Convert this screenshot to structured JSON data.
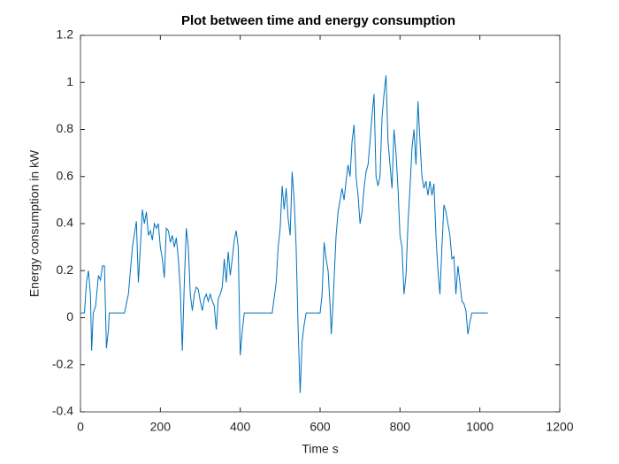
{
  "chart_data": {
    "type": "line",
    "title": "Plot between time and energy consumption",
    "xlabel": "Time s",
    "ylabel": "Energy consumption in kW",
    "color": "#0072bd",
    "xlim": [
      0,
      1200
    ],
    "xticks": [
      0,
      200,
      400,
      600,
      800,
      1000,
      1200
    ],
    "ylim": [
      -0.4,
      1.2
    ],
    "yticks": [
      -0.4,
      -0.2,
      0,
      0.2,
      0.4,
      0.6,
      0.8,
      1,
      1.2
    ],
    "x": [
      0,
      10,
      15,
      20,
      25,
      28,
      32,
      38,
      45,
      50,
      55,
      60,
      65,
      70,
      72,
      80,
      100,
      110,
      120,
      130,
      140,
      145,
      150,
      155,
      160,
      165,
      170,
      175,
      180,
      185,
      190,
      195,
      200,
      205,
      210,
      215,
      220,
      225,
      230,
      235,
      240,
      245,
      250,
      255,
      260,
      265,
      270,
      275,
      280,
      285,
      290,
      295,
      300,
      305,
      310,
      315,
      320,
      325,
      330,
      335,
      340,
      345,
      350,
      355,
      360,
      365,
      370,
      375,
      380,
      385,
      390,
      395,
      400,
      405,
      410,
      420,
      440,
      460,
      480,
      490,
      495,
      500,
      505,
      510,
      515,
      520,
      525,
      530,
      535,
      540,
      545,
      550,
      555,
      560,
      565,
      570,
      580,
      590,
      600,
      605,
      610,
      615,
      620,
      625,
      628,
      632,
      640,
      645,
      650,
      655,
      660,
      665,
      670,
      675,
      680,
      685,
      690,
      695,
      700,
      705,
      710,
      715,
      720,
      725,
      730,
      735,
      740,
      745,
      750,
      755,
      760,
      765,
      770,
      775,
      780,
      785,
      790,
      795,
      800,
      805,
      810,
      815,
      820,
      825,
      830,
      835,
      840,
      845,
      850,
      855,
      860,
      865,
      870,
      875,
      880,
      885,
      890,
      895,
      900,
      905,
      910,
      915,
      920,
      925,
      930,
      935,
      940,
      945,
      950,
      955,
      960,
      965,
      970,
      975,
      980,
      1000,
      1020
    ],
    "values": [
      0.02,
      0.02,
      0.15,
      0.2,
      0.1,
      -0.14,
      0.02,
      0.05,
      0.18,
      0.16,
      0.22,
      0.22,
      -0.13,
      -0.05,
      0.02,
      0.02,
      0.02,
      0.02,
      0.1,
      0.3,
      0.41,
      0.15,
      0.3,
      0.46,
      0.4,
      0.45,
      0.35,
      0.37,
      0.33,
      0.4,
      0.38,
      0.4,
      0.3,
      0.25,
      0.17,
      0.38,
      0.37,
      0.32,
      0.35,
      0.3,
      0.34,
      0.25,
      0.12,
      -0.14,
      0.15,
      0.38,
      0.3,
      0.1,
      0.03,
      0.1,
      0.13,
      0.12,
      0.07,
      0.03,
      0.08,
      0.1,
      0.07,
      0.1,
      0.07,
      0.05,
      -0.05,
      0.08,
      0.1,
      0.13,
      0.25,
      0.15,
      0.28,
      0.18,
      0.25,
      0.33,
      0.37,
      0.3,
      -0.16,
      -0.06,
      0.02,
      0.02,
      0.02,
      0.02,
      0.02,
      0.15,
      0.3,
      0.38,
      0.56,
      0.46,
      0.55,
      0.42,
      0.35,
      0.62,
      0.5,
      0.3,
      -0.05,
      -0.32,
      -0.1,
      -0.03,
      0.02,
      0.02,
      0.02,
      0.02,
      0.02,
      0.1,
      0.32,
      0.25,
      0.2,
      0.05,
      -0.07,
      0.05,
      0.35,
      0.45,
      0.5,
      0.55,
      0.5,
      0.58,
      0.65,
      0.6,
      0.75,
      0.82,
      0.6,
      0.52,
      0.4,
      0.45,
      0.55,
      0.62,
      0.65,
      0.75,
      0.86,
      0.95,
      0.6,
      0.56,
      0.6,
      0.85,
      0.95,
      1.03,
      0.75,
      0.65,
      0.55,
      0.8,
      0.7,
      0.55,
      0.35,
      0.3,
      0.1,
      0.18,
      0.4,
      0.55,
      0.72,
      0.8,
      0.65,
      0.92,
      0.75,
      0.6,
      0.55,
      0.58,
      0.52,
      0.58,
      0.52,
      0.57,
      0.35,
      0.2,
      0.1,
      0.3,
      0.48,
      0.45,
      0.4,
      0.35,
      0.25,
      0.26,
      0.1,
      0.22,
      0.15,
      0.07,
      0.06,
      0.03,
      -0.07,
      -0.02,
      0.02,
      0.02,
      0.02
    ]
  }
}
